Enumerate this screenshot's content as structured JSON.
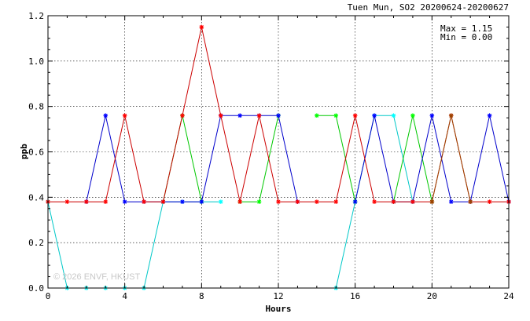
{
  "chart_data": {
    "type": "line",
    "title": "Tuen Mun, SO2 20200624-20200627",
    "xlabel": "Hours",
    "ylabel": "ppb",
    "xlim": [
      0,
      24
    ],
    "ylim": [
      0,
      1.2
    ],
    "xticks": [
      0,
      4,
      8,
      12,
      16,
      20,
      24
    ],
    "yticks": [
      0.0,
      0.2,
      0.4,
      0.6,
      0.8,
      1.0,
      1.2
    ],
    "xtick_labels": [
      "0",
      "4",
      "8",
      "12",
      "16",
      "20",
      "24"
    ],
    "ytick_labels": [
      "0.0",
      "0.2",
      "0.4",
      "0.6",
      "0.8",
      "1.0",
      "1.2"
    ],
    "grid": true,
    "stats": {
      "max_text": "Max = 1.15",
      "min_text": "Min = 0.00"
    },
    "watermark": "© 2026 ENVF, HKUST",
    "x": [
      0,
      1,
      2,
      3,
      4,
      5,
      6,
      7,
      8,
      9,
      10,
      11,
      12,
      13,
      14,
      15,
      16,
      17,
      18,
      19,
      20,
      21,
      22,
      23,
      24
    ],
    "series": [
      {
        "color": "#00c8c8",
        "marker": "#00ffff",
        "values": [
          0.38,
          0.0,
          0.0,
          0.0,
          0.0,
          0.0,
          0.38,
          0.38,
          0.38,
          0.38,
          null,
          null,
          null,
          null,
          null,
          0.0,
          0.38,
          0.76,
          0.76,
          0.38,
          null,
          null,
          null,
          null,
          null
        ]
      },
      {
        "color": "#00c800",
        "marker": "#00ff00",
        "values": [
          null,
          null,
          null,
          null,
          null,
          null,
          0.38,
          0.76,
          0.38,
          null,
          0.38,
          0.38,
          0.76,
          null,
          0.76,
          0.76,
          0.38,
          null,
          0.38,
          0.76,
          0.38,
          null,
          null,
          null,
          null
        ]
      },
      {
        "color": "#0000cc",
        "marker": "#0000ff",
        "values": [
          null,
          null,
          0.38,
          0.76,
          0.38,
          0.38,
          0.38,
          0.38,
          0.38,
          0.76,
          0.76,
          0.76,
          0.76,
          0.38,
          null,
          null,
          0.38,
          0.76,
          0.38,
          0.38,
          0.76,
          0.38,
          0.38,
          0.76,
          0.38
        ]
      },
      {
        "color": "#cc0000",
        "marker": "#ff0000",
        "values": [
          0.38,
          0.38,
          0.38,
          0.38,
          0.76,
          0.38,
          0.38,
          0.76,
          1.15,
          0.76,
          0.38,
          0.76,
          0.38,
          0.38,
          0.38,
          0.38,
          0.76,
          0.38,
          0.38,
          0.38,
          0.38,
          0.76,
          0.38,
          0.38,
          0.38
        ]
      },
      {
        "color": "#994400",
        "marker": "#994400",
        "values": [
          null,
          null,
          null,
          null,
          null,
          null,
          null,
          null,
          null,
          null,
          null,
          null,
          null,
          null,
          null,
          null,
          null,
          null,
          null,
          null,
          0.38,
          0.76,
          0.38,
          null,
          null
        ]
      }
    ]
  }
}
